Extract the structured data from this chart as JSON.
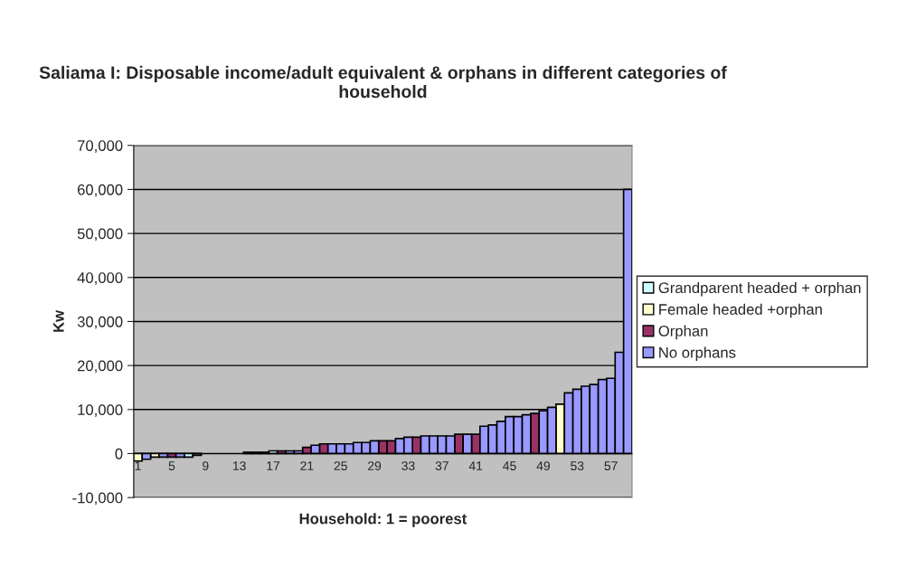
{
  "chart_data": {
    "type": "bar",
    "title": "Saliama I: Disposable income/adult equivalent & orphans in different categories of household",
    "xlabel": "Household: 1 = poorest",
    "ylabel": "Kw",
    "categories": [
      "1",
      null,
      null,
      null,
      "5",
      null,
      null,
      null,
      "9",
      null,
      null,
      null,
      "13",
      null,
      null,
      null,
      "17",
      null,
      null,
      null,
      "21",
      null,
      null,
      null,
      "25",
      null,
      null,
      null,
      "29",
      null,
      null,
      null,
      "33",
      null,
      null,
      null,
      "37",
      null,
      null,
      null,
      "41",
      null,
      null,
      null,
      "45",
      null,
      null,
      null,
      "49",
      null,
      null,
      null,
      "53",
      null,
      null,
      null,
      "57",
      null,
      null
    ],
    "stacked": true,
    "series": [
      {
        "name": "Grandparent headed + orphan",
        "color": "#ccffff",
        "values": [
          null,
          null,
          null,
          null,
          null,
          null,
          -800,
          null,
          null,
          null,
          null,
          null,
          null,
          null,
          null,
          null,
          600,
          null,
          null,
          null,
          null,
          null,
          null,
          null,
          null,
          null,
          null,
          null,
          null,
          null,
          null,
          null,
          null,
          null,
          null,
          null,
          null,
          null,
          null,
          null,
          null,
          null,
          null,
          null,
          null,
          null,
          null,
          null,
          null,
          null,
          null,
          null,
          null,
          null,
          null,
          null,
          null,
          null,
          null
        ]
      },
      {
        "name": "Female headed +orphan",
        "color": "#ffffcc",
        "values": [
          -1700,
          null,
          -800,
          null,
          null,
          null,
          null,
          null,
          null,
          null,
          null,
          null,
          null,
          null,
          null,
          null,
          null,
          null,
          null,
          null,
          null,
          null,
          null,
          null,
          null,
          null,
          null,
          null,
          null,
          null,
          null,
          null,
          null,
          null,
          null,
          null,
          null,
          null,
          null,
          null,
          null,
          null,
          null,
          null,
          null,
          null,
          null,
          null,
          null,
          null,
          11200,
          null,
          null,
          null,
          null,
          null,
          null,
          null,
          null
        ]
      },
      {
        "name": "Orphan",
        "color": "#993366",
        "values": [
          null,
          null,
          null,
          null,
          -800,
          null,
          null,
          null,
          null,
          null,
          null,
          null,
          null,
          null,
          null,
          null,
          null,
          600,
          null,
          null,
          1400,
          null,
          2200,
          null,
          null,
          null,
          null,
          null,
          null,
          2900,
          2900,
          null,
          null,
          3700,
          null,
          null,
          null,
          null,
          4400,
          null,
          4400,
          null,
          null,
          null,
          null,
          null,
          null,
          9100,
          null,
          null,
          null,
          null,
          null,
          null,
          null,
          null,
          null,
          null,
          null
        ]
      },
      {
        "name": "No orphans",
        "color": "#9999ff",
        "values": [
          null,
          -1300,
          null,
          -800,
          null,
          -800,
          null,
          -400,
          null,
          null,
          null,
          null,
          null,
          300,
          300,
          300,
          null,
          null,
          600,
          600,
          null,
          1900,
          null,
          2200,
          2200,
          2200,
          2500,
          2500,
          2900,
          null,
          null,
          3400,
          3700,
          null,
          4000,
          4000,
          4000,
          4000,
          null,
          4400,
          null,
          6200,
          6500,
          7300,
          8400,
          8400,
          8800,
          null,
          9700,
          10500,
          null,
          13800,
          14600,
          15300,
          15700,
          16800,
          17100,
          23000,
          60000
        ]
      }
    ],
    "ylim": [
      -10000,
      70000
    ],
    "yticks": [
      {
        "value": -10000,
        "label": "-10,000"
      },
      0,
      {
        "value": 10000,
        "label": "10,000"
      },
      {
        "value": 20000,
        "label": "20,000"
      },
      {
        "value": 30000,
        "label": "30,000"
      },
      {
        "value": 40000,
        "label": "40,000"
      },
      {
        "value": 50000,
        "label": "50,000"
      },
      {
        "value": 60000,
        "label": "60,000"
      },
      {
        "value": 70000,
        "label": "70,000"
      }
    ],
    "grid": "y",
    "legend": "right"
  }
}
